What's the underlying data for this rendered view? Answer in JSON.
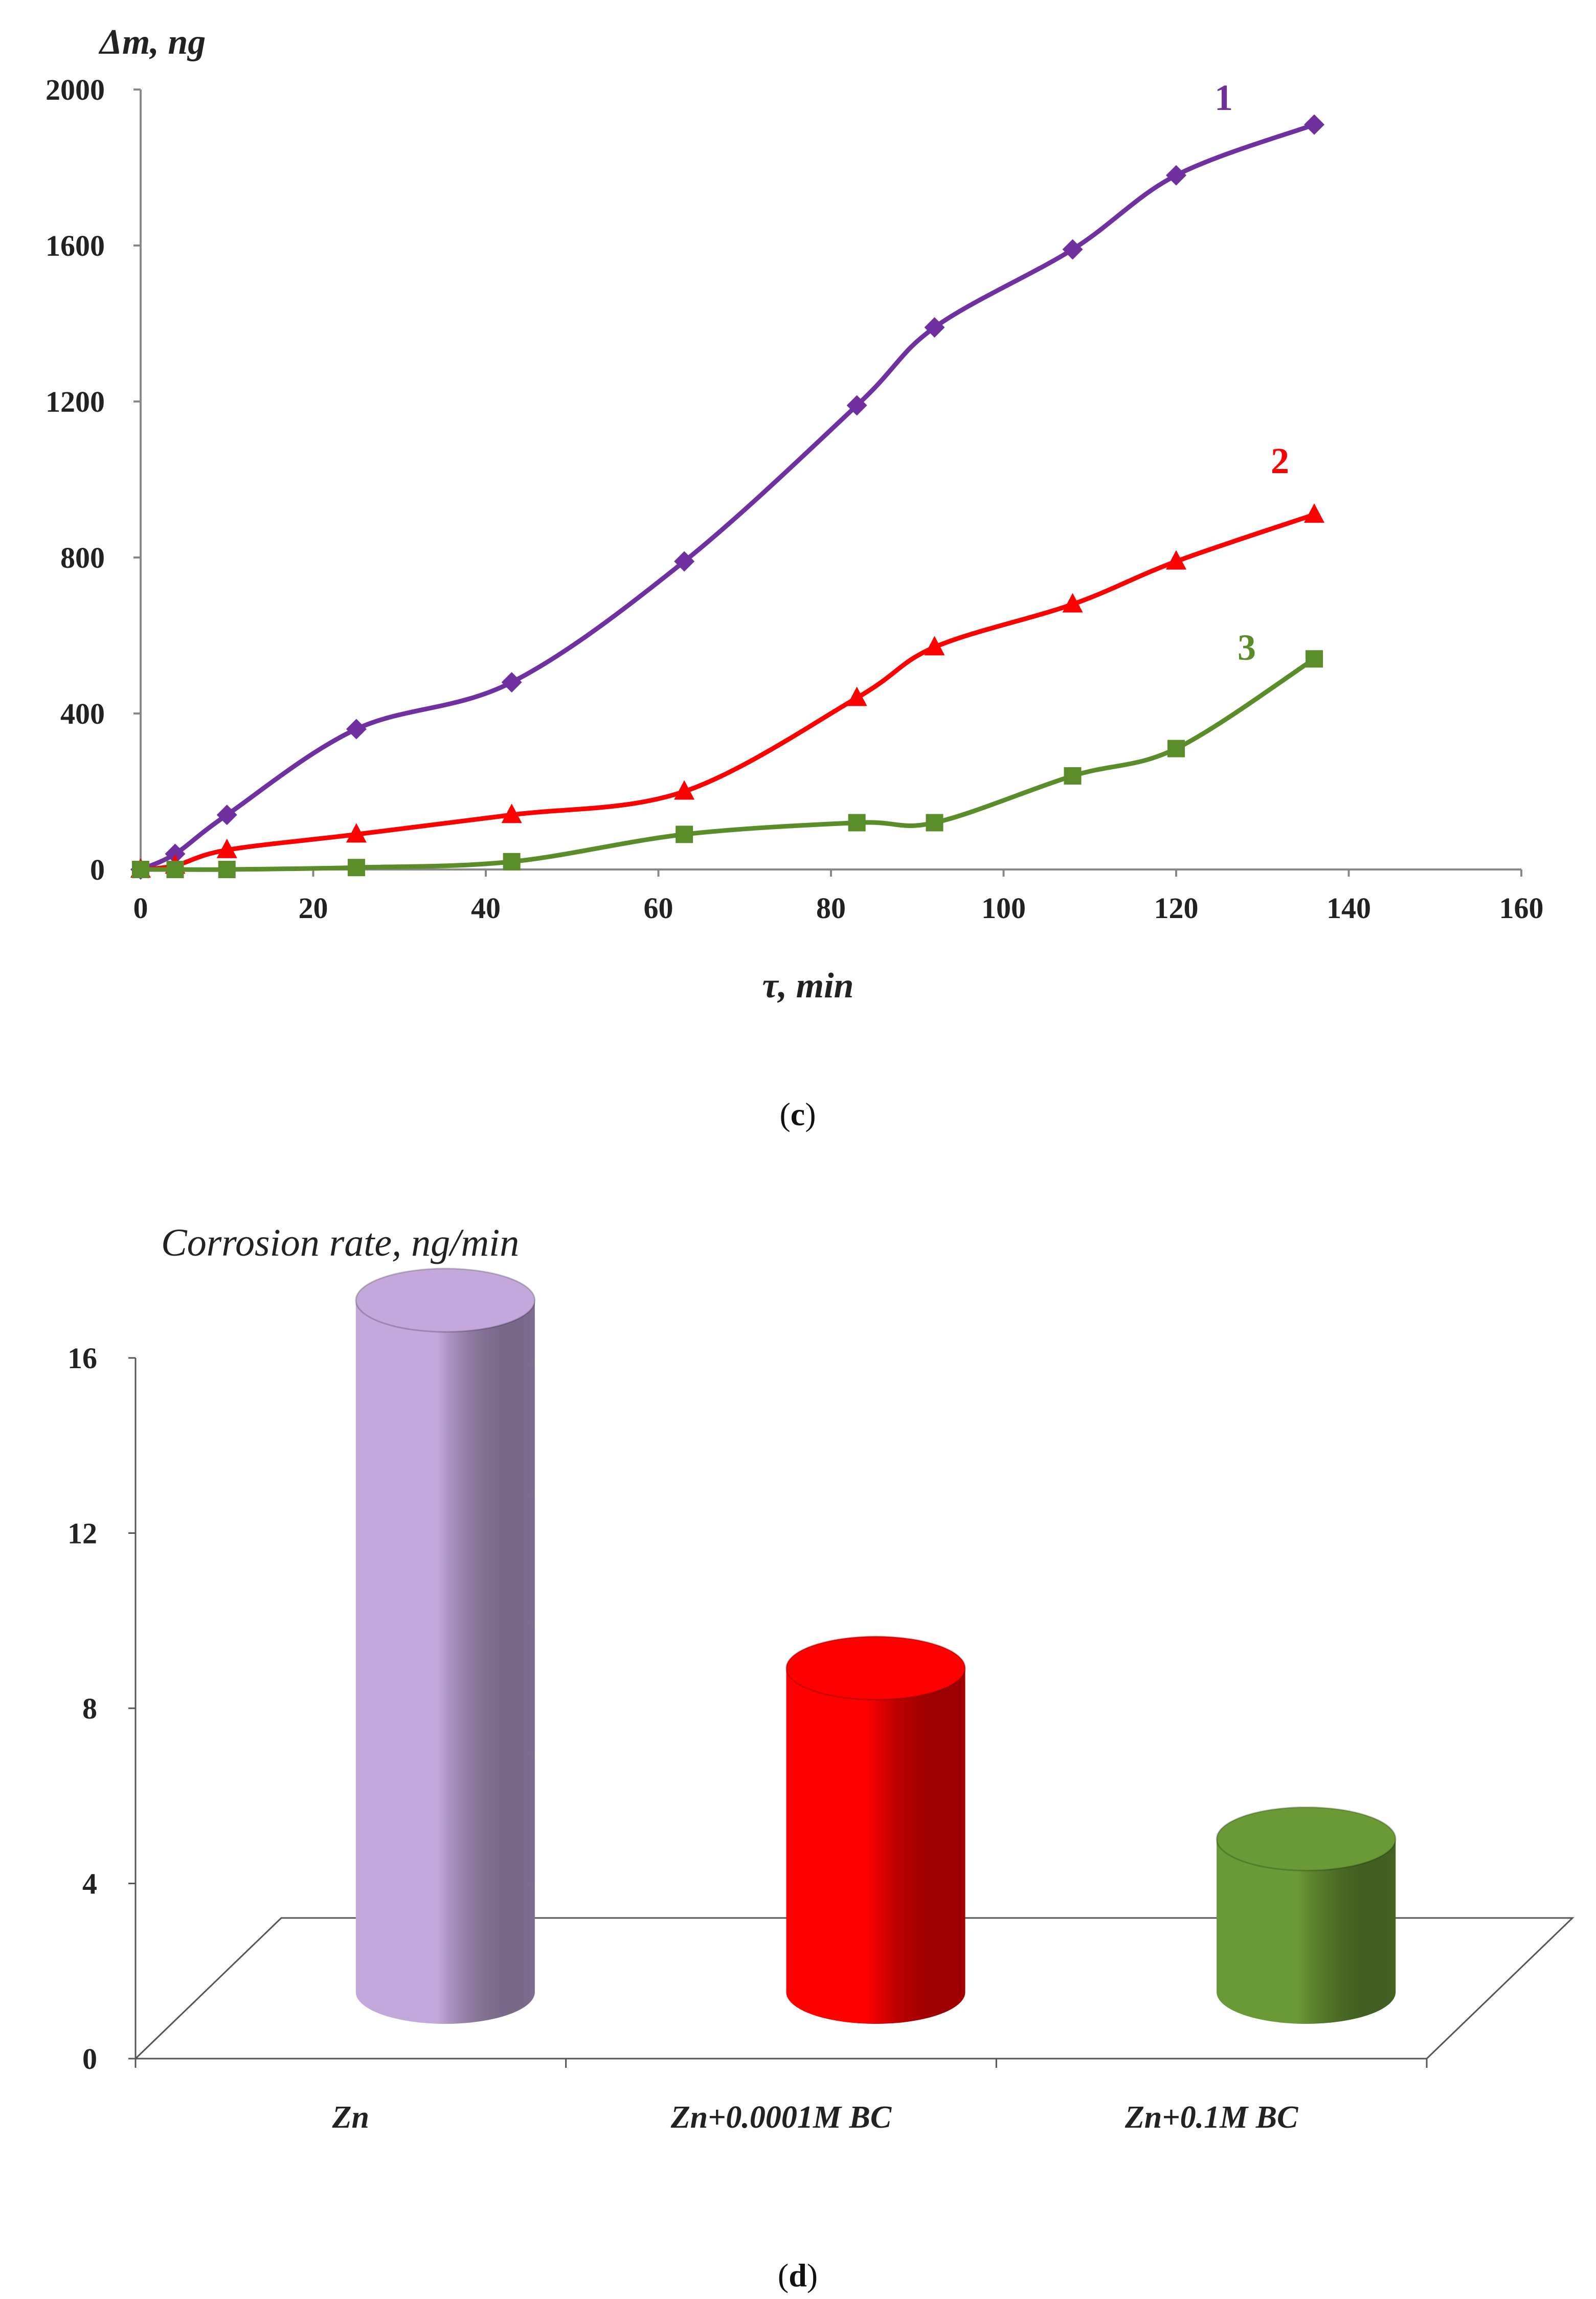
{
  "chart_data": [
    {
      "type": "line",
      "panel": "c",
      "caption": "(c)",
      "title": "",
      "ylabel": "Δm, ng",
      "xlabel": "τ, min",
      "xlim": [
        0,
        160
      ],
      "ylim": [
        0,
        2000
      ],
      "xticks": [
        0,
        20,
        40,
        60,
        80,
        100,
        120,
        140,
        160
      ],
      "yticks": [
        0,
        400,
        800,
        1200,
        1600,
        2000
      ],
      "series": [
        {
          "name": "1",
          "color": "#7030a0",
          "marker": "diamond",
          "x": [
            0,
            4,
            10,
            25,
            43,
            63,
            83,
            92,
            108,
            120,
            136
          ],
          "y": [
            0,
            40,
            140,
            360,
            480,
            790,
            1190,
            1390,
            1590,
            1780,
            1910
          ]
        },
        {
          "name": "2",
          "color": "#ff0000",
          "marker": "triangle",
          "x": [
            0,
            4,
            10,
            25,
            43,
            63,
            83,
            92,
            108,
            120,
            136
          ],
          "y": [
            0,
            10,
            50,
            90,
            140,
            200,
            440,
            570,
            680,
            790,
            910
          ]
        },
        {
          "name": "3",
          "color": "#5b8c2a",
          "marker": "square",
          "x": [
            0,
            4,
            10,
            25,
            43,
            63,
            83,
            92,
            108,
            120,
            136
          ],
          "y": [
            0,
            0,
            0,
            5,
            20,
            90,
            120,
            120,
            240,
            310,
            540
          ]
        }
      ]
    },
    {
      "type": "bar",
      "panel": "d",
      "caption": "(d)",
      "title": "Corrosion rate, ng/min",
      "xlabel": "",
      "ylabel": "",
      "ylim": [
        0,
        16
      ],
      "yticks": [
        0,
        4,
        8,
        12,
        16
      ],
      "categories": [
        "Zn",
        "Zn+0.0001M BC",
        "Zn+0.1M BC"
      ],
      "values": [
        15.8,
        7.4,
        3.5
      ],
      "colors": [
        "#c4a8dc",
        "#ff0000",
        "#6a9a35"
      ]
    }
  ],
  "captions": {
    "c_open": "(",
    "c_letter": "c",
    "c_close": ")",
    "d_open": "(",
    "d_letter": "d",
    "d_close": ")"
  }
}
